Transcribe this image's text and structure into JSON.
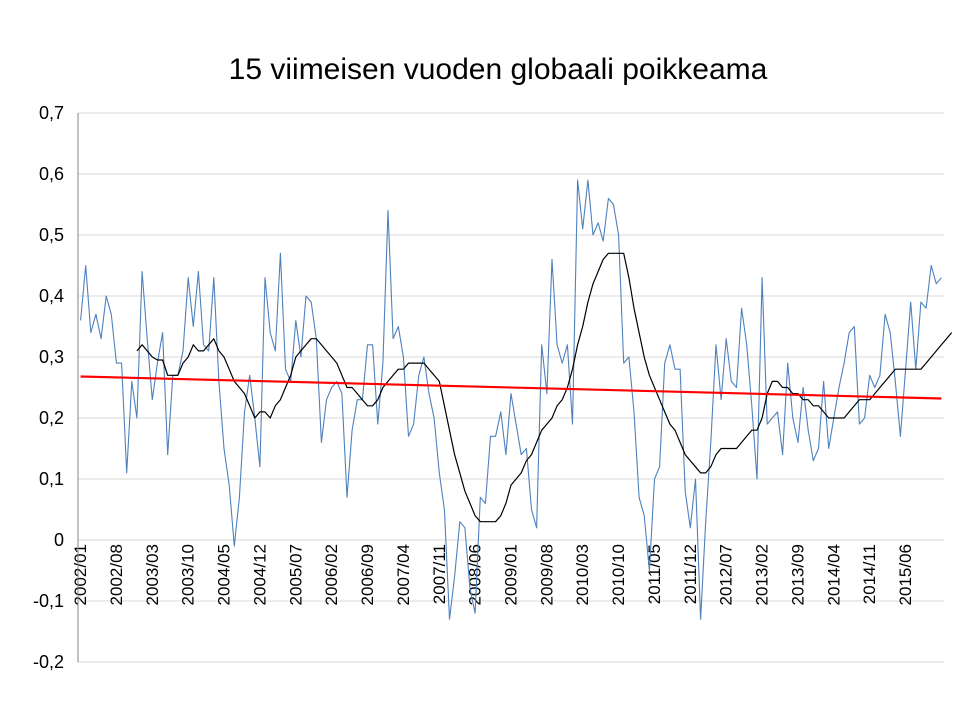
{
  "chart_data": {
    "type": "line",
    "title": "15 viimeisen vuoden globaali poikkeama",
    "xlabel": "",
    "ylabel": "",
    "ylim": [
      -0.2,
      0.7
    ],
    "yticks": [
      -0.2,
      -0.1,
      0,
      0.1,
      0.2,
      0.3,
      0.4,
      0.5,
      0.6,
      0.7
    ],
    "ytick_labels": [
      "-0,2",
      "-0,1",
      "0",
      "0,1",
      "0,2",
      "0,3",
      "0,4",
      "0,5",
      "0,6",
      "0,7"
    ],
    "x_start": "2002/01",
    "x_count": 169,
    "xtick_labels": [
      "2002/01",
      "2002/08",
      "2003/03",
      "2003/10",
      "2004/05",
      "2004/12",
      "2005/07",
      "2006/02",
      "2006/09",
      "2007/04",
      "2007/11",
      "2008/06",
      "2009/01",
      "2009/08",
      "2010/03",
      "2010/10",
      "2011/05",
      "2011/12",
      "2012/07",
      "2013/02",
      "2013/09",
      "2014/04",
      "2014/11",
      "2015/06"
    ],
    "grid": true,
    "legend": "none",
    "series": [
      {
        "color": "#4f81bd",
        "values": [
          0.36,
          0.45,
          0.34,
          0.37,
          0.33,
          0.4,
          0.37,
          0.29,
          0.29,
          0.11,
          0.26,
          0.2,
          0.44,
          0.33,
          0.23,
          0.29,
          0.34,
          0.14,
          0.27,
          0.27,
          0.31,
          0.43,
          0.35,
          0.44,
          0.32,
          0.31,
          0.43,
          0.26,
          0.15,
          0.09,
          -0.01,
          0.07,
          0.21,
          0.27,
          0.2,
          0.12,
          0.43,
          0.34,
          0.31,
          0.47,
          0.28,
          0.26,
          0.36,
          0.3,
          0.4,
          0.39,
          0.33,
          0.16,
          0.23,
          0.25,
          0.26,
          0.24,
          0.07,
          0.18,
          0.23,
          0.23,
          0.32,
          0.32,
          0.19,
          0.29,
          0.54,
          0.33,
          0.35,
          0.3,
          0.17,
          0.19,
          0.27,
          0.3,
          0.24,
          0.2,
          0.11,
          0.05,
          -0.13,
          -0.06,
          0.03,
          0.02,
          -0.08,
          -0.12,
          0.07,
          0.06,
          0.17,
          0.17,
          0.21,
          0.14,
          0.24,
          0.19,
          0.14,
          0.15,
          0.05,
          0.02,
          0.32,
          0.24,
          0.46,
          0.32,
          0.29,
          0.32,
          0.19,
          0.59,
          0.51,
          0.59,
          0.5,
          0.52,
          0.49,
          0.56,
          0.55,
          0.5,
          0.29,
          0.3,
          0.21,
          0.07,
          0.04,
          -0.05,
          0.1,
          0.12,
          0.29,
          0.32,
          0.28,
          0.28,
          0.08,
          0.02,
          0.1,
          -0.13,
          0.03,
          0.16,
          0.32,
          0.23,
          0.33,
          0.26,
          0.25,
          0.38,
          0.32,
          0.22,
          0.1,
          0.43,
          0.19,
          0.2,
          0.21,
          0.14,
          0.29,
          0.2,
          0.16,
          0.25,
          0.18,
          0.13,
          0.15,
          0.26,
          0.15,
          0.2,
          0.25,
          0.29,
          0.34,
          0.35,
          0.19,
          0.2,
          0.27,
          0.25,
          0.27,
          0.37,
          0.34,
          0.26,
          0.17,
          0.28,
          0.39,
          0.28,
          0.39,
          0.38,
          0.45,
          0.42,
          0.43
        ]
      },
      {
        "color": "#000000",
        "values": [
          null,
          null,
          null,
          null,
          null,
          null,
          null,
          null,
          null,
          null,
          null,
          0.31,
          0.32,
          0.31,
          0.3,
          0.295,
          0.295,
          0.27,
          0.27,
          0.27,
          0.29,
          0.3,
          0.32,
          0.31,
          0.31,
          0.32,
          0.33,
          0.31,
          0.3,
          0.28,
          0.26,
          0.25,
          0.24,
          0.22,
          0.2,
          0.21,
          0.21,
          0.2,
          0.22,
          0.23,
          0.25,
          0.27,
          0.3,
          0.31,
          0.32,
          0.33,
          0.33,
          0.32,
          0.31,
          0.3,
          0.29,
          0.27,
          0.25,
          0.25,
          0.24,
          0.23,
          0.22,
          0.22,
          0.23,
          0.25,
          0.26,
          0.27,
          0.28,
          0.28,
          0.29,
          0.29,
          0.29,
          0.29,
          0.28,
          0.27,
          0.26,
          0.22,
          0.18,
          0.14,
          0.11,
          0.08,
          0.06,
          0.04,
          0.03,
          0.03,
          0.03,
          0.03,
          0.04,
          0.06,
          0.09,
          0.1,
          0.11,
          0.13,
          0.14,
          0.16,
          0.18,
          0.19,
          0.2,
          0.22,
          0.23,
          0.25,
          0.28,
          0.32,
          0.35,
          0.39,
          0.42,
          0.44,
          0.46,
          0.47,
          0.47,
          0.47,
          0.47,
          0.43,
          0.38,
          0.34,
          0.3,
          0.27,
          0.25,
          0.23,
          0.21,
          0.19,
          0.18,
          0.16,
          0.14,
          0.13,
          0.12,
          0.11,
          0.11,
          0.12,
          0.14,
          0.15,
          0.15,
          0.15,
          0.15,
          0.16,
          0.17,
          0.18,
          0.18,
          0.2,
          0.24,
          0.26,
          0.26,
          0.25,
          0.25,
          0.24,
          0.24,
          0.23,
          0.23,
          0.22,
          0.22,
          0.21,
          0.2,
          0.2,
          0.2,
          0.2,
          0.21,
          0.22,
          0.23,
          0.23,
          0.23,
          0.24,
          0.25,
          0.26,
          0.27,
          0.28,
          0.28,
          0.28,
          0.28,
          0.28,
          0.28,
          0.29,
          0.3,
          0.31,
          0.32,
          0.33,
          0.34
        ]
      },
      {
        "color": "#ff0000",
        "type": "trend",
        "values": [
          0.268,
          0.232
        ]
      }
    ]
  }
}
